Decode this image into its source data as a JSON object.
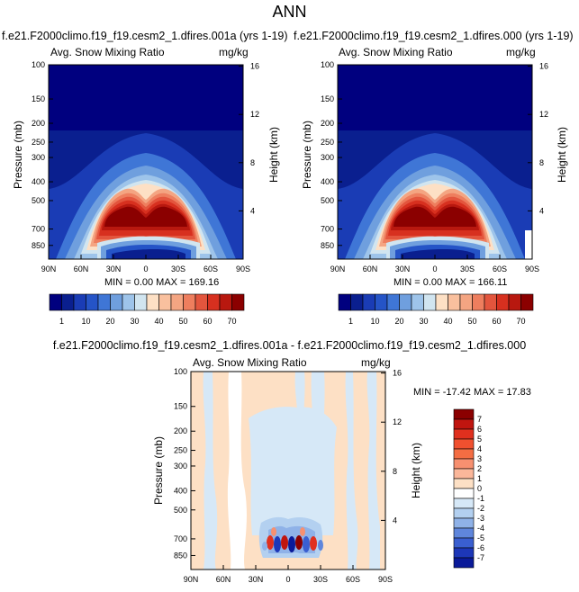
{
  "figure": {
    "title": "ANN",
    "colors": {
      "dark_red": "#8b0000",
      "red": "#d7301f",
      "orange": "#f4a582",
      "peach": "#fde0c5",
      "white": "#ffffff",
      "light_blue": "#d1e5f0",
      "mid_blue": "#6f9fde",
      "blue": "#2554c7",
      "dark_blue": "#0a1f8f",
      "navy": "#00007f"
    }
  },
  "panels": [
    {
      "case_title": "f.e21.F2000climo.f19_f19.cesm2_1.dfires.001a (yrs 1-19)",
      "variable": "Avg. Snow Mixing Ratio",
      "units": "mg/kg",
      "ylabel": "Pressure (mb)",
      "ylabel_right": "Height (km)",
      "stats": "MIN =   0.00  MAX = 169.16"
    },
    {
      "case_title": "f.e21.F2000climo.f19_f19.cesm2_1.dfires.000 (yrs 1-19)",
      "variable": "Avg. Snow Mixing Ratio",
      "units": "mg/kg",
      "ylabel": "Pressure (mb)",
      "ylabel_right": "Height (km)",
      "stats": "MIN =   0.00  MAX = 166.11"
    },
    {
      "case_title": "f.e21.F2000climo.f19_f19.cesm2_1.dfires.001a - f.e21.F2000climo.f19_f19.cesm2_1.dfires.000",
      "variable": "Avg. Snow Mixing Ratio",
      "units": "mg/kg",
      "ylabel": "Pressure (mb)",
      "ylabel_right": "Height (km)",
      "stats": "MIN = -17.42  MAX =  17.83"
    }
  ],
  "chart_data": [
    {
      "type": "heatmap",
      "title": "Avg. Snow Mixing Ratio",
      "xlabel": "",
      "ylabel": "Pressure (mb)",
      "x_ticks": [
        "90N",
        "60N",
        "30N",
        "0",
        "30S",
        "60S",
        "90S"
      ],
      "y_ticks": [
        "100",
        "150",
        "200",
        "250",
        "300",
        "400",
        "500",
        "700",
        "850"
      ],
      "y_ticks_right": [
        "16",
        "12",
        "8",
        "4"
      ],
      "x_range": [
        90,
        -90
      ],
      "y_range": [
        1000,
        100
      ],
      "y_scale": "log",
      "min": 0.0,
      "max": 169.16,
      "colorbar_levels": [
        "1",
        "10",
        "20",
        "30",
        "40",
        "50",
        "60",
        "70"
      ],
      "colorbar_colors": [
        "#00007f",
        "#0a1f8f",
        "#1a3cb5",
        "#2554c7",
        "#3f76d6",
        "#6f9fde",
        "#9ec4ea",
        "#d1e5f0",
        "#fde0c5",
        "#f9c09e",
        "#f4a582",
        "#ee7e5e",
        "#e3553d",
        "#d7301f",
        "#b8180f",
        "#8b0000"
      ]
    },
    {
      "type": "heatmap",
      "title": "Avg. Snow Mixing Ratio",
      "xlabel": "",
      "ylabel": "Pressure (mb)",
      "x_ticks": [
        "90N",
        "60N",
        "30N",
        "0",
        "30S",
        "60S",
        "90S"
      ],
      "y_ticks": [
        "100",
        "150",
        "200",
        "250",
        "300",
        "400",
        "500",
        "700",
        "850"
      ],
      "y_ticks_right": [
        "16",
        "12",
        "8",
        "4"
      ],
      "x_range": [
        90,
        -90
      ],
      "y_range": [
        1000,
        100
      ],
      "y_scale": "log",
      "min": 0.0,
      "max": 166.11,
      "colorbar_levels": [
        "1",
        "10",
        "20",
        "30",
        "40",
        "50",
        "60",
        "70"
      ],
      "colorbar_colors": [
        "#00007f",
        "#0a1f8f",
        "#1a3cb5",
        "#2554c7",
        "#3f76d6",
        "#6f9fde",
        "#9ec4ea",
        "#d1e5f0",
        "#fde0c5",
        "#f9c09e",
        "#f4a582",
        "#ee7e5e",
        "#e3553d",
        "#d7301f",
        "#b8180f",
        "#8b0000"
      ]
    },
    {
      "type": "heatmap",
      "title": "Avg. Snow Mixing Ratio",
      "xlabel": "",
      "ylabel": "Pressure (mb)",
      "x_ticks": [
        "90N",
        "60N",
        "30N",
        "0",
        "30S",
        "60S",
        "90S"
      ],
      "y_ticks": [
        "100",
        "150",
        "200",
        "250",
        "300",
        "400",
        "500",
        "700",
        "850"
      ],
      "y_ticks_right": [
        "16",
        "12",
        "8",
        "4"
      ],
      "x_range": [
        90,
        -90
      ],
      "y_range": [
        1000,
        100
      ],
      "y_scale": "log",
      "min": -17.42,
      "max": 17.83,
      "colorbar_levels": [
        "7",
        "6",
        "5",
        "4",
        "3",
        "2",
        "1",
        "0",
        "-1",
        "-2",
        "-3",
        "-4",
        "-5",
        "-6",
        "-7"
      ],
      "colorbar_colors": [
        "#8b0000",
        "#c0150f",
        "#e0301e",
        "#f0502f",
        "#f46d43",
        "#f79070",
        "#fbb79a",
        "#fde0c5",
        "#ffffff",
        "#d6e8f7",
        "#b3d0f0",
        "#8fb2e8",
        "#5f86dc",
        "#3a5fd0",
        "#1d37b8",
        "#0a1a99"
      ]
    }
  ]
}
